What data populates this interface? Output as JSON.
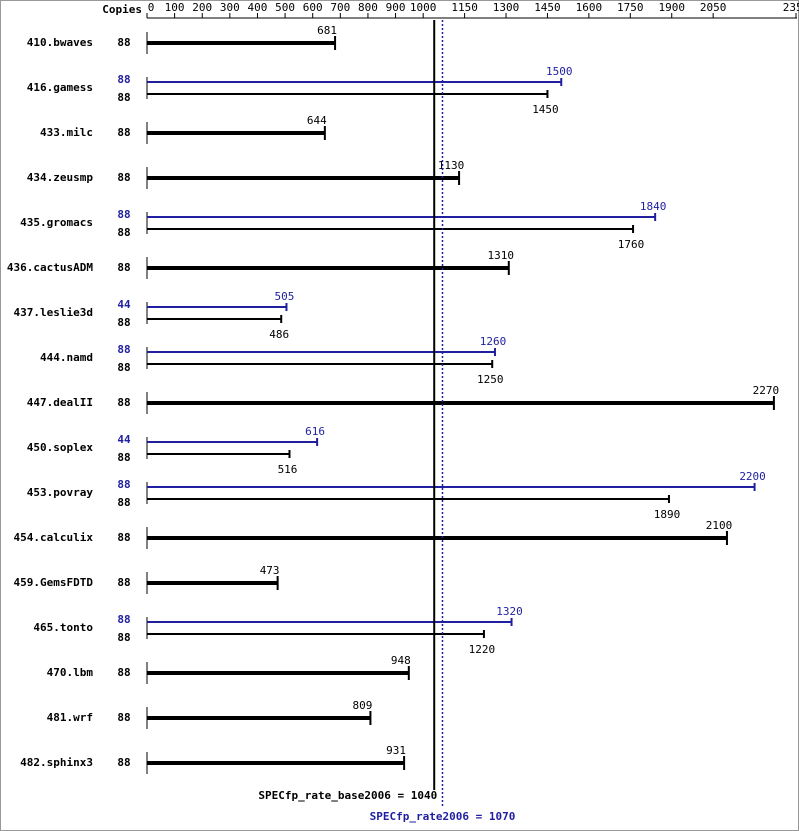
{
  "chart_data": {
    "type": "bar",
    "orientation": "horizontal",
    "copies_label": "Copies",
    "categories": [
      "410.bwaves",
      "416.gamess",
      "433.milc",
      "434.zeusmp",
      "435.gromacs",
      "436.cactusADM",
      "437.leslie3d",
      "444.namd",
      "447.dealII",
      "450.soplex",
      "453.povray",
      "454.calculix",
      "459.GemsFDTD",
      "465.tonto",
      "470.lbm",
      "481.wrf",
      "482.sphinx3"
    ],
    "series": [
      {
        "color": "#000000",
        "copies": [
          88,
          88,
          88,
          88,
          88,
          88,
          88,
          88,
          88,
          88,
          88,
          88,
          88,
          88,
          88,
          88,
          88
        ],
        "values": [
          681,
          1450,
          644,
          1130,
          1760,
          1310,
          486,
          1250,
          2270,
          516,
          1890,
          2100,
          473,
          1220,
          948,
          809,
          931
        ]
      },
      {
        "color": "#1f1f9f",
        "copies": [
          null,
          88,
          null,
          null,
          88,
          null,
          44,
          88,
          null,
          44,
          88,
          null,
          null,
          88,
          null,
          null,
          null
        ],
        "values": [
          null,
          1500,
          null,
          null,
          1840,
          null,
          505,
          1260,
          null,
          616,
          2200,
          null,
          null,
          1320,
          null,
          null,
          null
        ]
      }
    ],
    "xlim": [
      0,
      2350
    ],
    "xticks": [
      0,
      100,
      200,
      300,
      400,
      500,
      600,
      700,
      800,
      900,
      1000,
      1150,
      1300,
      1450,
      1600,
      1750,
      1900,
      2050,
      2350
    ],
    "reference_lines": [
      {
        "label": "SPECfp_rate_base2006 = 1040",
        "value": 1040,
        "color": "#000000",
        "style": "solid"
      },
      {
        "label": "SPECfp_rate2006 = 1070",
        "value": 1070,
        "color": "#1f1f9f",
        "style": "dotted"
      }
    ]
  }
}
